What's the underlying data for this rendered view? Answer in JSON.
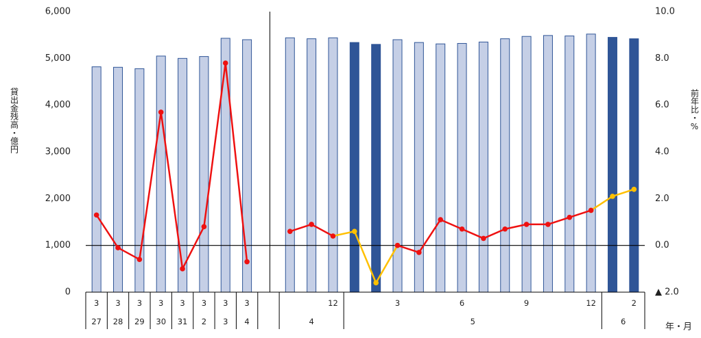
{
  "chart_data": {
    "type": "bar_line",
    "y_label": "貸出金残高・億円",
    "y2_label": "前年比・%",
    "x_label": "年・月",
    "months": [
      "3",
      "3",
      "3",
      "3",
      "3",
      "3",
      "3",
      "3",
      null,
      null,
      null,
      "12",
      null,
      null,
      "3",
      null,
      null,
      "6",
      null,
      null,
      "9",
      null,
      null,
      "12",
      null,
      "2"
    ],
    "year_groups": [
      {
        "label": "27",
        "count": 1
      },
      {
        "label": "28",
        "count": 1
      },
      {
        "label": "29",
        "count": 1
      },
      {
        "label": "30",
        "count": 1
      },
      {
        "label": "31",
        "count": 1
      },
      {
        "label": "2",
        "count": 1
      },
      {
        "label": "3",
        "count": 1
      },
      {
        "label": "4",
        "count": 1
      },
      {
        "label": null,
        "count": 1
      },
      {
        "label": "4",
        "count": 3
      },
      {
        "label": "5",
        "count": 12
      },
      {
        "label": "6",
        "count": 2
      }
    ],
    "ylim": [
      0,
      6000
    ],
    "yticks": [
      0,
      {
        "value": 1000,
        "label": "1,000"
      },
      {
        "value": 2000,
        "label": "2,000"
      },
      {
        "value": 3000,
        "label": "3,000"
      },
      {
        "value": 4000,
        "label": "4,000"
      },
      {
        "value": 5000,
        "label": "5,000"
      },
      {
        "value": 6000,
        "label": "6,000"
      }
    ],
    "y2lim": [
      -2,
      10
    ],
    "y2ticks": [
      {
        "value": -2,
        "label": "▲ 2.0"
      },
      {
        "value": 0,
        "label": "0.0"
      },
      {
        "value": 2,
        "label": "2.0"
      },
      {
        "value": 4,
        "label": "4.0"
      },
      {
        "value": 6,
        "label": "6.0"
      },
      {
        "value": 8,
        "label": "8.0"
      },
      {
        "value": 10,
        "label": "10.0"
      }
    ],
    "zero_line_y2": 0,
    "bars": {
      "values": [
        4820,
        4810,
        4780,
        5050,
        5000,
        5040,
        5430,
        5400,
        null,
        5440,
        5420,
        5440,
        5340,
        5300,
        5400,
        5340,
        5310,
        5320,
        5350,
        5420,
        5470,
        5490,
        5480,
        5520,
        5450,
        5420
      ],
      "colors": [
        "#c5cfe6",
        "#c5cfe6",
        "#c5cfe6",
        "#c5cfe6",
        "#c5cfe6",
        "#c5cfe6",
        "#c5cfe6",
        "#c5cfe6",
        null,
        "#c5cfe6",
        "#c5cfe6",
        "#c5cfe6",
        "#2f5597",
        "#2f5597",
        "#c5cfe6",
        "#c5cfe6",
        "#c5cfe6",
        "#c5cfe6",
        "#c5cfe6",
        "#c5cfe6",
        "#c5cfe6",
        "#c5cfe6",
        "#c5cfe6",
        "#c5cfe6",
        "#2f5597",
        "#2f5597"
      ],
      "stroke": "#2f5597"
    },
    "series": [
      {
        "color": "#ffc000",
        "axis": "y2",
        "values": [
          null,
          null,
          null,
          null,
          null,
          null,
          null,
          null,
          null,
          null,
          null,
          0.4,
          0.6,
          -1.6,
          0.0,
          null,
          null,
          null,
          null,
          null,
          null,
          null,
          null,
          1.5,
          2.1,
          2.4
        ]
      },
      {
        "color": "#ee1111",
        "axis": "y2",
        "values": [
          1.3,
          -0.1,
          -0.6,
          5.7,
          -1.0,
          0.8,
          7.8,
          -0.7,
          null,
          0.6,
          0.9,
          0.4,
          null,
          null,
          0.0,
          -0.3,
          1.1,
          0.7,
          0.3,
          0.7,
          0.9,
          0.9,
          1.2,
          1.5,
          null,
          null
        ]
      }
    ]
  }
}
